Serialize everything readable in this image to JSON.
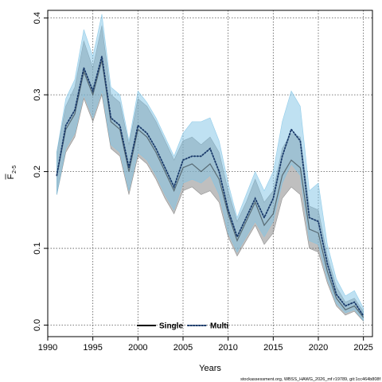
{
  "chart_data": {
    "type": "line",
    "xlabel": "Years",
    "ylabel_main": "F",
    "ylabel_sub": "2-5",
    "xlim": [
      1990,
      2026
    ],
    "ylim": [
      -0.015,
      0.41
    ],
    "xticks": [
      1990,
      1995,
      2000,
      2005,
      2010,
      2015,
      2020,
      2025
    ],
    "yticks": [
      0.0,
      0.1,
      0.2,
      0.3,
      0.4
    ],
    "ytick_labels": [
      "0.0",
      "0.1",
      "0.2",
      "0.3",
      "0.4"
    ],
    "grid": true,
    "legend_position": "bottom-center",
    "footnote": "stockassessment.org, WBSS_HAWG_2026_mf r19789, git:1cc464b808f",
    "x": [
      1991,
      1992,
      1993,
      1994,
      1995,
      1996,
      1997,
      1998,
      1999,
      2000,
      2001,
      2002,
      2003,
      2004,
      2005,
      2006,
      2007,
      2008,
      2009,
      2010,
      2011,
      2012,
      2013,
      2014,
      2015,
      2016,
      2017,
      2018,
      2019,
      2020,
      2021,
      2022,
      2023,
      2024,
      2025
    ],
    "series": [
      {
        "name": "Single",
        "color": "#000000",
        "band_color": "#808080",
        "line_style": "solid",
        "values": [
          0.195,
          0.255,
          0.275,
          0.33,
          0.3,
          0.345,
          0.265,
          0.255,
          0.2,
          0.255,
          0.245,
          0.225,
          0.2,
          0.175,
          0.205,
          0.21,
          0.2,
          0.21,
          0.19,
          0.145,
          0.11,
          0.135,
          0.16,
          0.13,
          0.145,
          0.195,
          0.215,
          0.205,
          0.125,
          0.12,
          0.07,
          0.035,
          0.02,
          0.025,
          0.01
        ],
        "lower": [
          0.17,
          0.225,
          0.245,
          0.295,
          0.265,
          0.3,
          0.23,
          0.22,
          0.17,
          0.22,
          0.21,
          0.19,
          0.165,
          0.145,
          0.175,
          0.18,
          0.17,
          0.175,
          0.16,
          0.115,
          0.09,
          0.11,
          0.13,
          0.105,
          0.12,
          0.165,
          0.18,
          0.17,
          0.1,
          0.095,
          0.055,
          0.025,
          0.013,
          0.018,
          0.005
        ],
        "upper": [
          0.225,
          0.285,
          0.31,
          0.37,
          0.335,
          0.39,
          0.3,
          0.29,
          0.235,
          0.295,
          0.285,
          0.265,
          0.24,
          0.215,
          0.24,
          0.245,
          0.235,
          0.245,
          0.225,
          0.175,
          0.135,
          0.16,
          0.19,
          0.16,
          0.175,
          0.23,
          0.25,
          0.245,
          0.155,
          0.15,
          0.09,
          0.05,
          0.03,
          0.035,
          0.018
        ]
      },
      {
        "name": "Multi",
        "color": "#1a3a6a",
        "band_color": "#7fc4e6",
        "line_style": "dotted",
        "values": [
          0.195,
          0.26,
          0.28,
          0.335,
          0.305,
          0.35,
          0.27,
          0.26,
          0.205,
          0.26,
          0.25,
          0.23,
          0.205,
          0.18,
          0.215,
          0.22,
          0.22,
          0.23,
          0.2,
          0.15,
          0.115,
          0.14,
          0.165,
          0.14,
          0.165,
          0.22,
          0.255,
          0.24,
          0.14,
          0.135,
          0.08,
          0.04,
          0.025,
          0.03,
          0.012
        ],
        "lower": [
          0.17,
          0.23,
          0.25,
          0.3,
          0.27,
          0.305,
          0.235,
          0.225,
          0.175,
          0.225,
          0.215,
          0.195,
          0.17,
          0.15,
          0.185,
          0.19,
          0.185,
          0.195,
          0.17,
          0.12,
          0.095,
          0.115,
          0.135,
          0.115,
          0.135,
          0.185,
          0.21,
          0.195,
          0.11,
          0.105,
          0.06,
          0.028,
          0.016,
          0.02,
          0.006
        ],
        "upper": [
          0.225,
          0.295,
          0.32,
          0.385,
          0.35,
          0.405,
          0.31,
          0.3,
          0.24,
          0.305,
          0.29,
          0.27,
          0.245,
          0.22,
          0.25,
          0.265,
          0.265,
          0.27,
          0.24,
          0.185,
          0.14,
          0.17,
          0.2,
          0.175,
          0.2,
          0.265,
          0.305,
          0.285,
          0.175,
          0.185,
          0.105,
          0.06,
          0.038,
          0.045,
          0.022
        ]
      }
    ]
  }
}
